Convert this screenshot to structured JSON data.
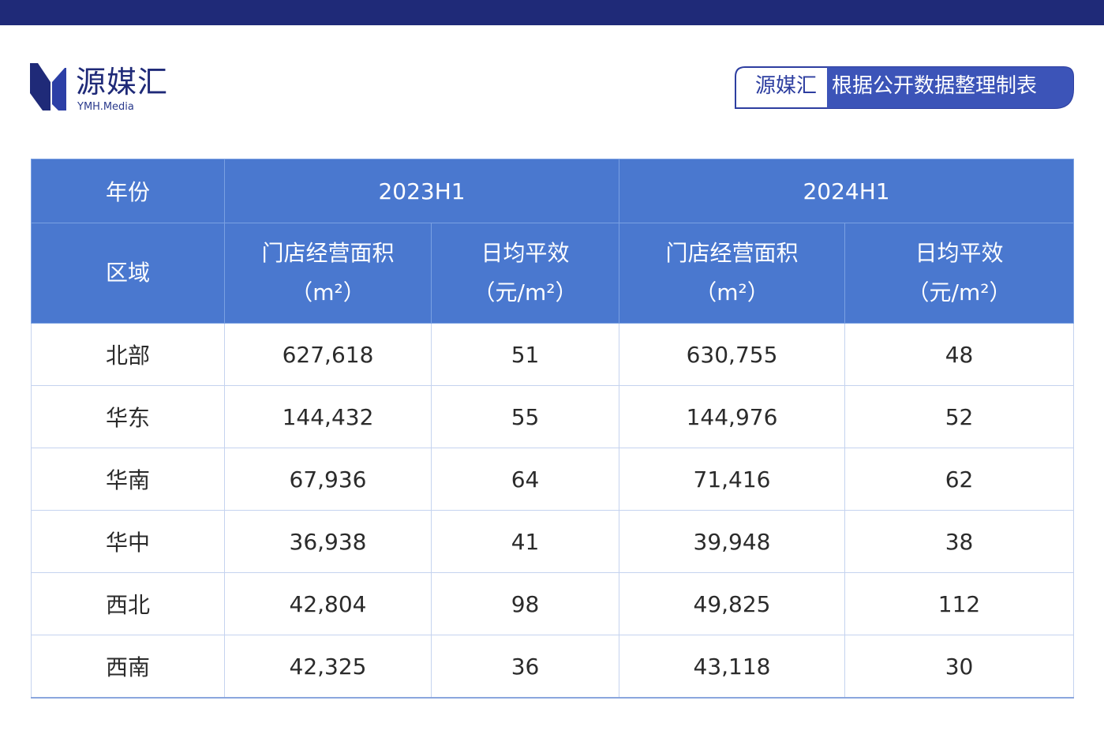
{
  "brand": {
    "name": "源媒汇",
    "sub": "YMH.Media",
    "color": "#1f2a78"
  },
  "source_badge": {
    "left": "源媒汇",
    "right": "根据公开数据整理制表"
  },
  "table": {
    "header_row1": {
      "year_label": "年份",
      "period_a": "2023H1",
      "period_b": "2024H1"
    },
    "header_row2": {
      "region_label": "区域",
      "area_label": "门店经营面积",
      "area_unit": "（m²）",
      "eff_label": "日均平效",
      "eff_unit": "（元/m²）"
    },
    "rows": [
      {
        "region": "北部",
        "a_area": "627,618",
        "a_eff": "51",
        "b_area": "630,755",
        "b_eff": "48"
      },
      {
        "region": "华东",
        "a_area": "144,432",
        "a_eff": "55",
        "b_area": "144,976",
        "b_eff": "52"
      },
      {
        "region": "华南",
        "a_area": "67,936",
        "a_eff": "64",
        "b_area": "71,416",
        "b_eff": "62"
      },
      {
        "region": "华中",
        "a_area": "36,938",
        "a_eff": "41",
        "b_area": "39,948",
        "b_eff": "38"
      },
      {
        "region": "西北",
        "a_area": "42,804",
        "a_eff": "98",
        "b_area": "49,825",
        "b_eff": "112"
      },
      {
        "region": "西南",
        "a_area": "42,325",
        "a_eff": "36",
        "b_area": "43,118",
        "b_eff": "30"
      }
    ]
  },
  "colors": {
    "top_bar": "#1f2a78",
    "header_bg": "#4a78cf",
    "badge_bg": "#3c54b8"
  }
}
